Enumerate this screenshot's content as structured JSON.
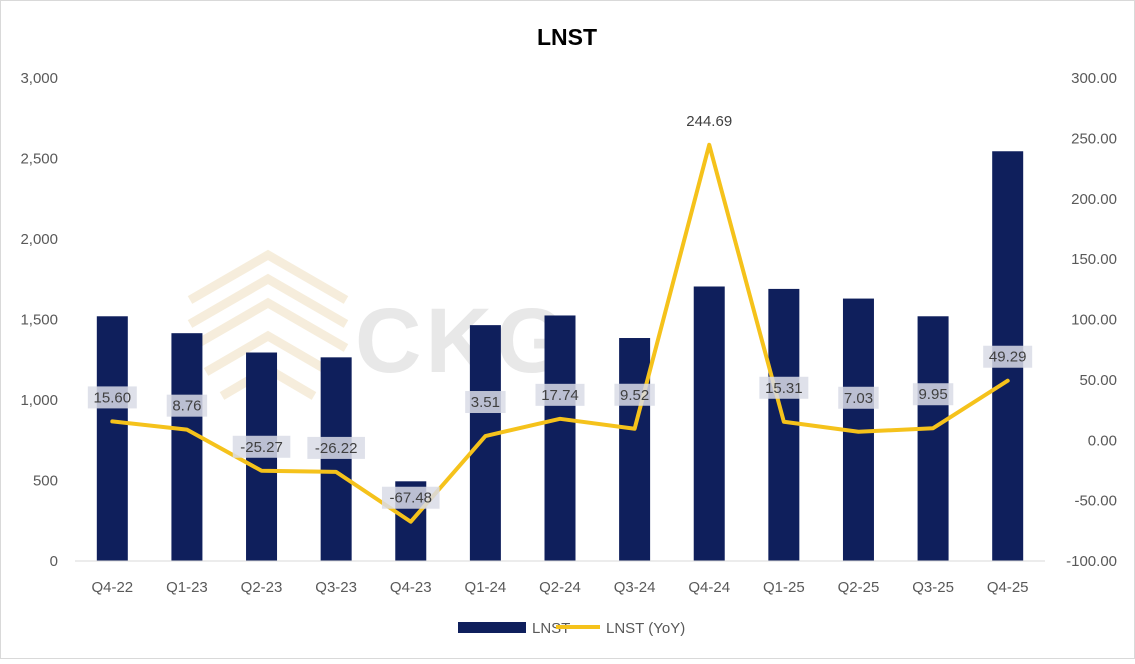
{
  "watermark": "CKG",
  "chart_data": {
    "type": "bar",
    "title": "LNST",
    "categories": [
      "Q4-22",
      "Q1-23",
      "Q2-23",
      "Q3-23",
      "Q4-23",
      "Q1-24",
      "Q2-24",
      "Q3-24",
      "Q4-24",
      "Q1-25",
      "Q2-25",
      "Q3-25",
      "Q4-25"
    ],
    "series": [
      {
        "name": "LNST",
        "type": "bar",
        "axis": "left",
        "color": "#0f1f5c",
        "values": [
          1520,
          1415,
          1295,
          1265,
          495,
          1465,
          1525,
          1385,
          1705,
          1690,
          1630,
          1520,
          2545
        ]
      },
      {
        "name": "LNST (YoY)",
        "type": "line",
        "axis": "right",
        "color": "#f5c21b",
        "values": [
          15.6,
          8.76,
          -25.27,
          -26.22,
          -67.48,
          3.51,
          17.74,
          9.52,
          244.69,
          15.31,
          7.03,
          9.95,
          49.29
        ],
        "labels": [
          "15.60",
          "8.76",
          "-25.27",
          "-26.22",
          "-67.48",
          "3.51",
          "17.74",
          "9.52",
          "244.69",
          "15.31",
          "7.03",
          "9.95",
          "49.29"
        ]
      }
    ],
    "y_left": {
      "min": 0,
      "max": 3000,
      "ticks": [
        "0",
        "500",
        "1,000",
        "1,500",
        "2,000",
        "2,500",
        "3,000"
      ],
      "tick_values": [
        0,
        500,
        1000,
        1500,
        2000,
        2500,
        3000
      ]
    },
    "y_right": {
      "min": -100,
      "max": 300,
      "ticks": [
        "-100.00",
        "-50.00",
        "0.00",
        "50.00",
        "100.00",
        "150.00",
        "200.00",
        "250.00",
        "300.00"
      ],
      "tick_values": [
        -100,
        -50,
        0,
        50,
        100,
        150,
        200,
        250,
        300
      ]
    },
    "grid": false,
    "legend": "bottom"
  }
}
